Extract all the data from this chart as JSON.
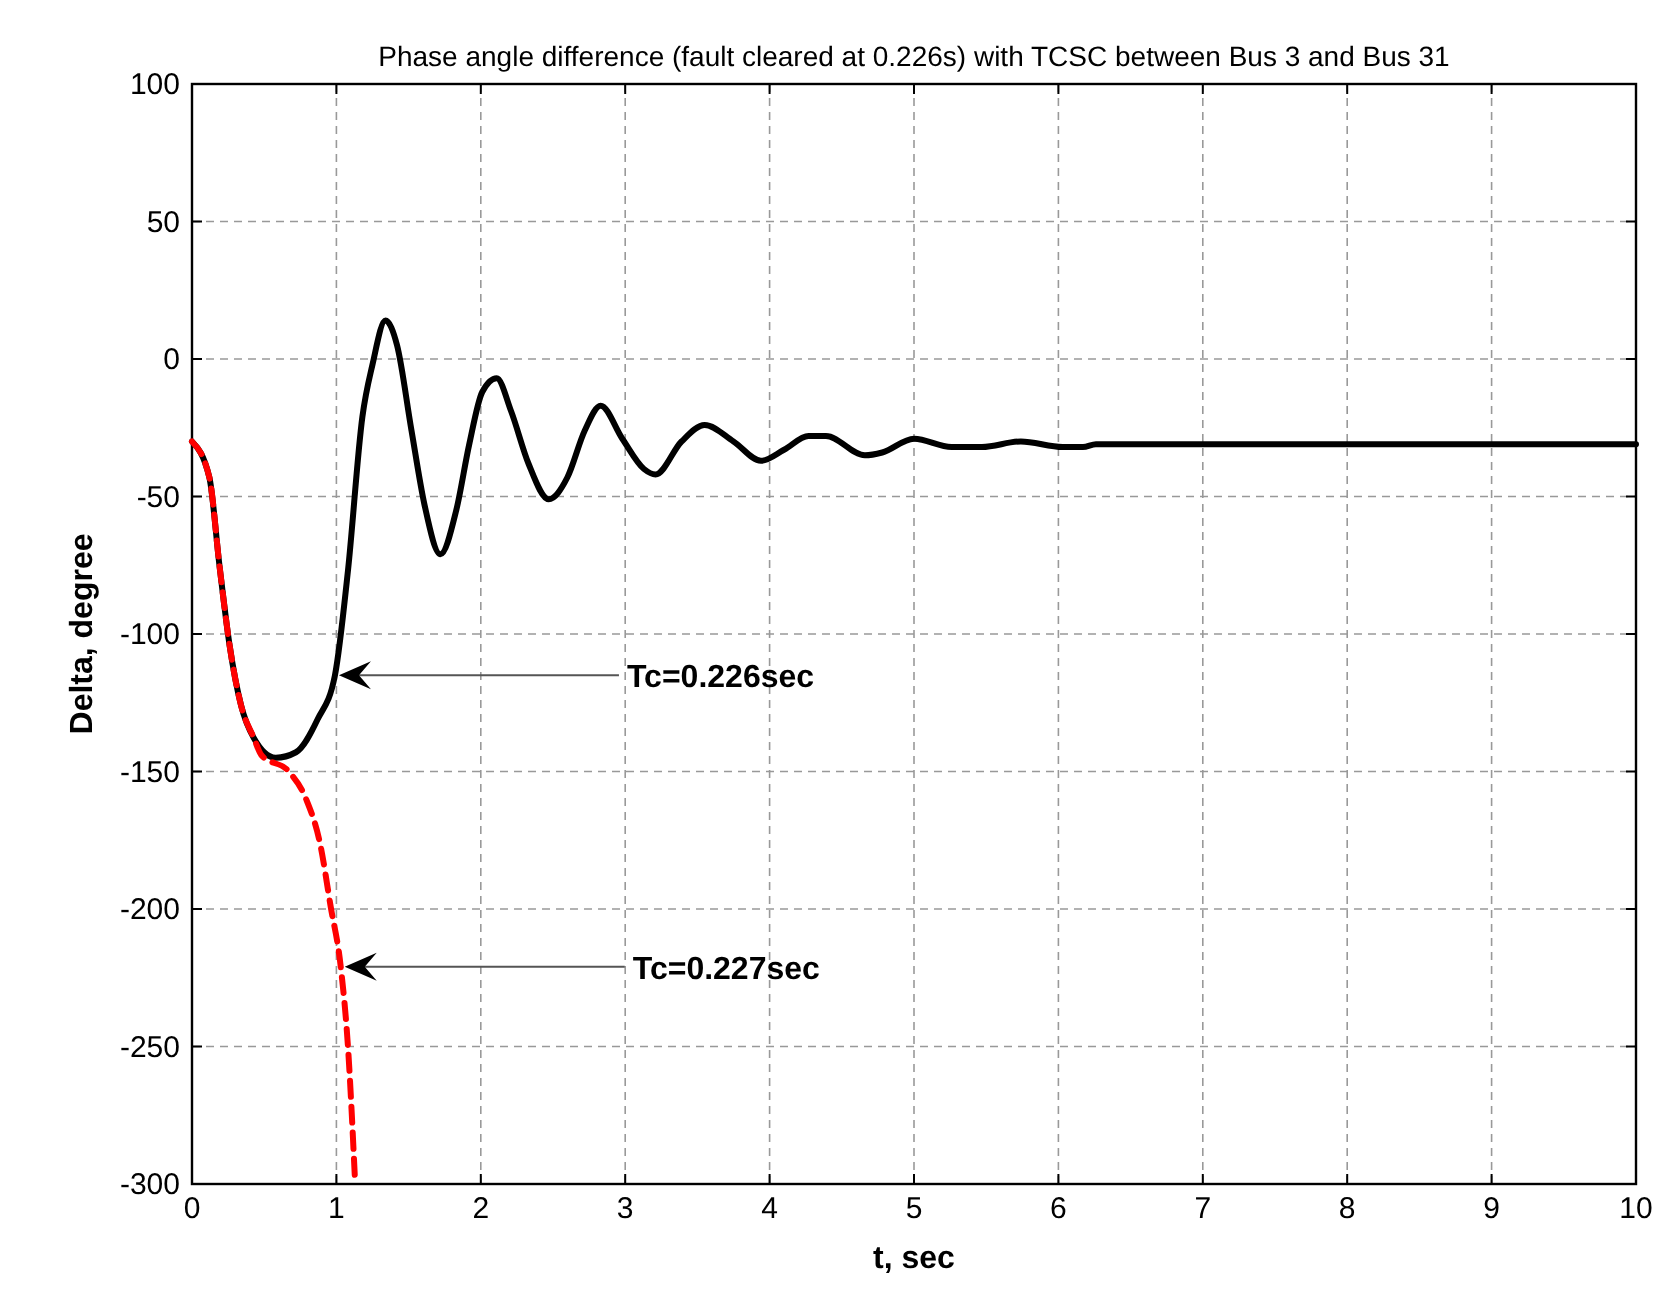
{
  "chart_data": {
    "type": "line",
    "title": "Phase angle difference (fault cleared at 0.226s) with TCSC between Bus 3 and Bus 31",
    "xlabel": "t, sec",
    "ylabel": "Delta, degree",
    "xlim": [
      0,
      10
    ],
    "ylim": [
      -300,
      100
    ],
    "xticks": [
      0,
      1,
      2,
      3,
      4,
      5,
      6,
      7,
      8,
      9,
      10
    ],
    "yticks": [
      -300,
      -250,
      -200,
      -150,
      -100,
      -50,
      0,
      50,
      100
    ],
    "grid": true,
    "series": [
      {
        "color": "#000000",
        "line_style": "solid",
        "x": [
          0,
          0.12,
          0.19,
          0.26,
          0.34,
          0.43,
          0.58,
          0.72,
          0.87,
          0.99,
          1.08,
          1.18,
          1.25,
          1.34,
          1.42,
          1.52,
          1.61,
          1.72,
          1.83,
          1.92,
          2.01,
          2.11,
          2.21,
          2.33,
          2.47,
          2.6,
          2.72,
          2.83,
          2.98,
          3.13,
          3.21,
          3.39,
          3.55,
          3.75,
          3.94,
          4.1,
          4.27,
          4.39,
          4.66,
          4.78,
          5.0,
          5.26,
          5.47,
          5.74,
          6.03,
          6.17,
          6.26,
          7.3,
          10
        ],
        "values": [
          -30,
          -43,
          -75,
          -104,
          -126,
          -138,
          -145,
          -143,
          -131,
          -115,
          -77,
          -21,
          -2,
          14,
          5,
          -26,
          -53,
          -71,
          -55,
          -31,
          -12,
          -7,
          -19,
          -38,
          -51,
          -43,
          -26,
          -17,
          -29,
          -40,
          -42,
          -30,
          -24,
          -30,
          -37,
          -33,
          -28,
          -28,
          -35,
          -34,
          -29,
          -32,
          -32,
          -30,
          -32,
          -32,
          -31,
          -31,
          -31
        ]
      },
      {
        "color": "#ff0000",
        "line_style": "dashed",
        "x": [
          0,
          0.12,
          0.19,
          0.26,
          0.34,
          0.43,
          0.48,
          0.67,
          0.79,
          0.89,
          0.96,
          1.03,
          1.08,
          1.13
        ],
        "values": [
          -30,
          -43,
          -75,
          -104,
          -126,
          -138,
          -144,
          -150,
          -160,
          -177,
          -199,
          -221,
          -250,
          -300
        ]
      }
    ],
    "annotations": [
      {
        "text": "Tc=0.226sec",
        "x": 0.99,
        "y": -115
      },
      {
        "text": "Tc=0.227sec",
        "x": 1.03,
        "y": -221
      }
    ]
  }
}
